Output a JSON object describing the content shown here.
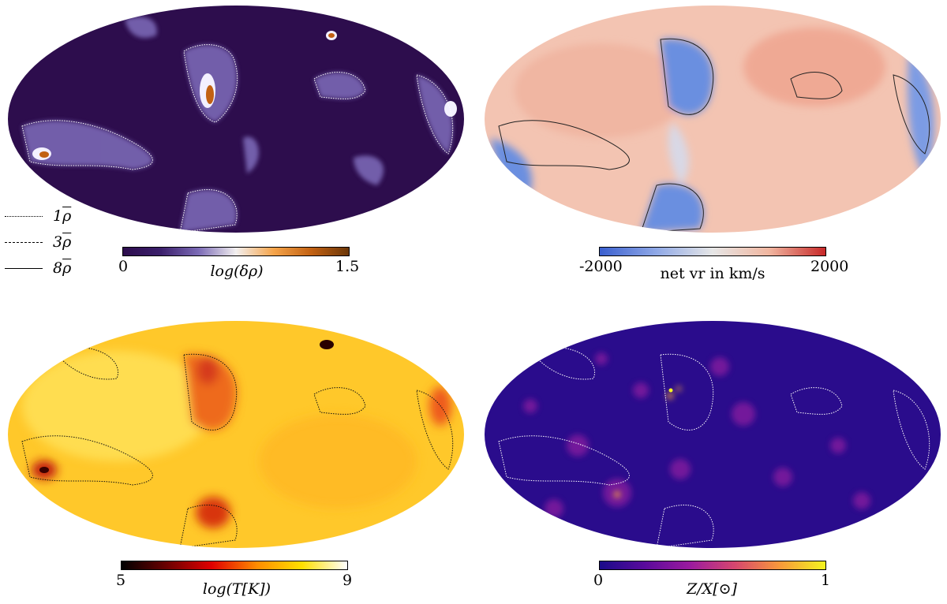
{
  "legend": {
    "items": [
      {
        "style": "dotted",
        "label": "1",
        "symbol": "ρ"
      },
      {
        "style": "dashdot",
        "label": "3",
        "symbol": "ρ"
      },
      {
        "style": "solid",
        "label": "8",
        "symbol": "ρ"
      }
    ]
  },
  "panels": [
    {
      "id": "density",
      "colorbar": {
        "min": "0",
        "max": "1.5",
        "label": "log(δρ)",
        "colors": [
          "#2d0d4d",
          "#3b1f6b",
          "#7b6ab5",
          "#f2efef",
          "#f5a44a",
          "#c26112",
          "#6b3608"
        ]
      },
      "map_colors": {
        "base": "#2d0d4d",
        "blob": "#7a68b5",
        "bright": "#f3f0ff",
        "contour": "#ffffff"
      }
    },
    {
      "id": "velocity",
      "colorbar": {
        "min": "-2000",
        "max": "2000",
        "label": "net vr in km/s",
        "colors": [
          "#3a5fcf",
          "#8fa8e6",
          "#e6e6e6",
          "#f0b6a0",
          "#c72828"
        ]
      },
      "map_colors": {
        "base": "#f3c4b2",
        "blob": "#6b8fe0",
        "bright": "#e8e8e8",
        "contour": "#222222"
      }
    },
    {
      "id": "temperature",
      "colorbar": {
        "min": "5",
        "max": "9",
        "label": "log(T[K])",
        "colors": [
          "#000000",
          "#6b0000",
          "#e00000",
          "#ff8c00",
          "#ffe000",
          "#ffffff"
        ]
      },
      "map_colors": {
        "base": "#ffc82a",
        "blob": "#d63a1a",
        "bright": "#ffee55",
        "contour": "#111111"
      }
    },
    {
      "id": "metallicity",
      "colorbar": {
        "min": "0",
        "max": "1",
        "label": "Z/X[⊙]",
        "colors": [
          "#1a0a8a",
          "#5a0a9c",
          "#9b1b9f",
          "#d6476e",
          "#f89a3a",
          "#f4f41f"
        ]
      },
      "map_colors": {
        "base": "#2a0c8c",
        "blob": "#8c1fa0",
        "bright": "#f7a13d",
        "contour": "#ffffff"
      }
    }
  ]
}
